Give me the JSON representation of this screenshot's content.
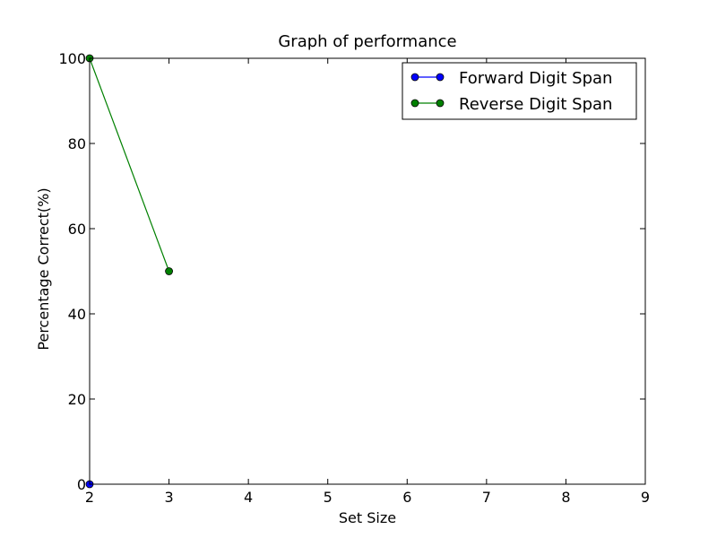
{
  "chart_data": {
    "type": "line",
    "title": "Graph of performance",
    "xlabel": "Set Size",
    "ylabel": "Percentage Correct(%)",
    "xlim": [
      2,
      9
    ],
    "ylim": [
      0,
      100
    ],
    "xticks": [
      2,
      3,
      4,
      5,
      6,
      7,
      8,
      9
    ],
    "yticks": [
      0,
      20,
      40,
      60,
      80,
      100
    ],
    "grid": false,
    "legend_position": "top-right",
    "series": [
      {
        "name": "Forward Digit Span",
        "color": "#0000ff",
        "x": [
          2
        ],
        "y": [
          0
        ]
      },
      {
        "name": "Reverse Digit Span",
        "color": "#008000",
        "x": [
          2,
          3
        ],
        "y": [
          100,
          50
        ]
      }
    ]
  }
}
